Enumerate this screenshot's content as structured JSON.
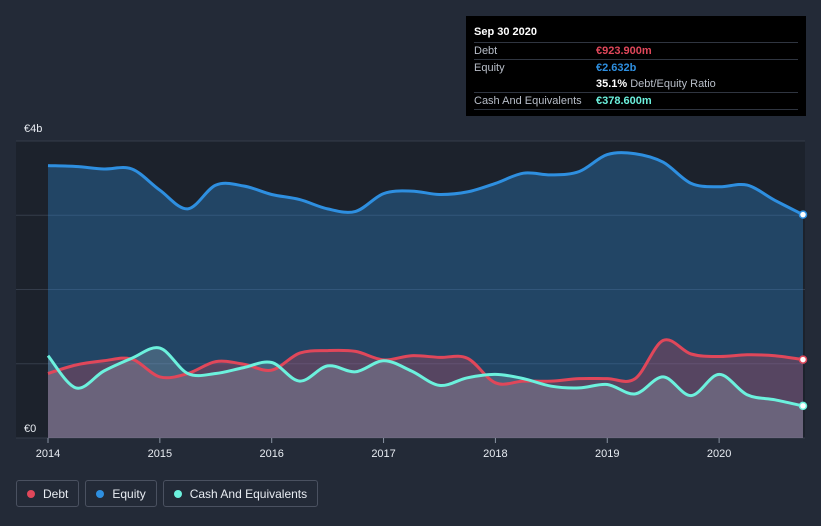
{
  "colors": {
    "debt": "#e0475a",
    "equity": "#2e8fe0",
    "cash": "#6cf1dd",
    "background": "#232a37"
  },
  "tooltip": {
    "date": "Sep 30 2020",
    "debt_label": "Debt",
    "debt_value": "€923.900m",
    "equity_label": "Equity",
    "equity_value": "€2.632b",
    "ratio_value": "35.1%",
    "ratio_label": "Debt/Equity Ratio",
    "cash_label": "Cash And Equivalents",
    "cash_value": "€378.600m"
  },
  "legend": [
    {
      "label": "Debt",
      "color": "#e0475a"
    },
    {
      "label": "Equity",
      "color": "#2e8fe0"
    },
    {
      "label": "Cash And Equivalents",
      "color": "#6cf1dd"
    }
  ],
  "chart_data": {
    "type": "area",
    "title": "",
    "ylabel": "",
    "ylim": [
      0,
      3.5
    ],
    "y_tick_labels": [
      {
        "value": 3.5,
        "label": "€4b"
      },
      {
        "value": 0,
        "label": "€0"
      }
    ],
    "xlim": [
      2014.0,
      2020.75
    ],
    "x_ticks": [
      2014,
      2015,
      2016,
      2017,
      2018,
      2019,
      2020
    ],
    "x_tick_labels": [
      "2014",
      "2015",
      "2016",
      "2017",
      "2018",
      "2019",
      "2020"
    ],
    "series": [
      {
        "name": "Equity",
        "unit": "€b",
        "points": [
          [
            2014.0,
            3.21
          ],
          [
            2014.25,
            3.2
          ],
          [
            2014.5,
            3.17
          ],
          [
            2014.75,
            3.17
          ],
          [
            2015.0,
            2.92
          ],
          [
            2015.25,
            2.7
          ],
          [
            2015.5,
            2.98
          ],
          [
            2015.75,
            2.97
          ],
          [
            2016.0,
            2.87
          ],
          [
            2016.25,
            2.81
          ],
          [
            2016.5,
            2.7
          ],
          [
            2016.75,
            2.67
          ],
          [
            2017.0,
            2.88
          ],
          [
            2017.25,
            2.91
          ],
          [
            2017.5,
            2.87
          ],
          [
            2017.75,
            2.9
          ],
          [
            2018.0,
            3.0
          ],
          [
            2018.25,
            3.12
          ],
          [
            2018.5,
            3.1
          ],
          [
            2018.75,
            3.14
          ],
          [
            2019.0,
            3.34
          ],
          [
            2019.25,
            3.35
          ],
          [
            2019.5,
            3.25
          ],
          [
            2019.75,
            3.0
          ],
          [
            2020.0,
            2.96
          ],
          [
            2020.25,
            2.98
          ],
          [
            2020.5,
            2.8
          ],
          [
            2020.75,
            2.632
          ]
        ]
      },
      {
        "name": "Debt",
        "unit": "€b",
        "points": [
          [
            2014.0,
            0.76
          ],
          [
            2014.25,
            0.86
          ],
          [
            2014.5,
            0.91
          ],
          [
            2014.75,
            0.93
          ],
          [
            2015.0,
            0.72
          ],
          [
            2015.25,
            0.76
          ],
          [
            2015.5,
            0.9
          ],
          [
            2015.75,
            0.87
          ],
          [
            2016.0,
            0.8
          ],
          [
            2016.25,
            1.0
          ],
          [
            2016.5,
            1.03
          ],
          [
            2016.75,
            1.02
          ],
          [
            2017.0,
            0.92
          ],
          [
            2017.25,
            0.97
          ],
          [
            2017.5,
            0.95
          ],
          [
            2017.75,
            0.94
          ],
          [
            2018.0,
            0.65
          ],
          [
            2018.25,
            0.67
          ],
          [
            2018.5,
            0.67
          ],
          [
            2018.75,
            0.7
          ],
          [
            2019.0,
            0.7
          ],
          [
            2019.25,
            0.7
          ],
          [
            2019.5,
            1.15
          ],
          [
            2019.75,
            0.99
          ],
          [
            2020.0,
            0.96
          ],
          [
            2020.25,
            0.98
          ],
          [
            2020.5,
            0.97
          ],
          [
            2020.75,
            0.9239
          ]
        ]
      },
      {
        "name": "Cash And Equivalents",
        "unit": "€b",
        "points": [
          [
            2014.0,
            0.97
          ],
          [
            2014.25,
            0.59
          ],
          [
            2014.5,
            0.79
          ],
          [
            2014.75,
            0.94
          ],
          [
            2015.0,
            1.06
          ],
          [
            2015.25,
            0.76
          ],
          [
            2015.5,
            0.76
          ],
          [
            2015.75,
            0.83
          ],
          [
            2016.0,
            0.89
          ],
          [
            2016.25,
            0.67
          ],
          [
            2016.5,
            0.85
          ],
          [
            2016.75,
            0.78
          ],
          [
            2017.0,
            0.91
          ],
          [
            2017.25,
            0.79
          ],
          [
            2017.5,
            0.62
          ],
          [
            2017.75,
            0.71
          ],
          [
            2018.0,
            0.75
          ],
          [
            2018.25,
            0.7
          ],
          [
            2018.5,
            0.61
          ],
          [
            2018.75,
            0.59
          ],
          [
            2019.0,
            0.63
          ],
          [
            2019.25,
            0.52
          ],
          [
            2019.5,
            0.72
          ],
          [
            2019.75,
            0.5
          ],
          [
            2020.0,
            0.75
          ],
          [
            2020.25,
            0.51
          ],
          [
            2020.5,
            0.45
          ],
          [
            2020.75,
            0.3786
          ]
        ]
      }
    ]
  }
}
